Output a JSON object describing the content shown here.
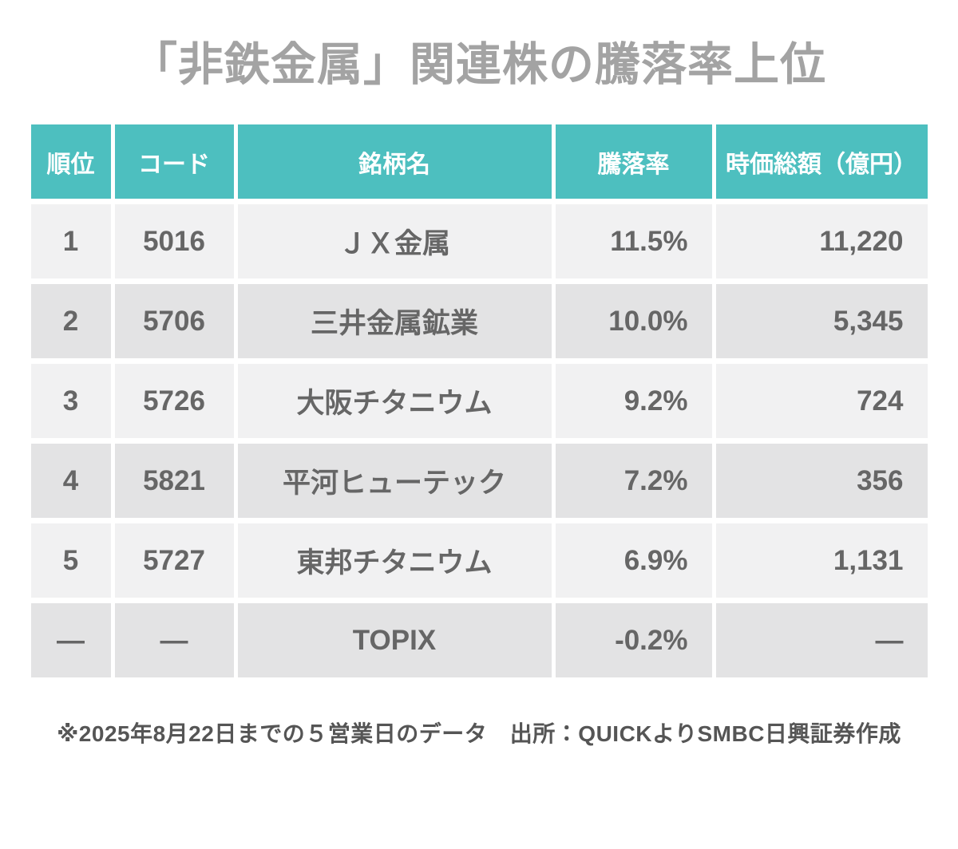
{
  "title": "「非鉄金属」関連株の騰落率上位",
  "footnote": "※2025年8月22日までの５営業日のデータ　出所：QUICKよりSMBC日興証券作成",
  "colors": {
    "header_bg": "#4dbfbf",
    "header_text": "#ffffff",
    "row_light": "#f1f1f2",
    "row_dark": "#e3e3e4",
    "title_text": "#a3a3a3",
    "body_text": "#666666",
    "footnote_text": "#555555",
    "page_bg": "#ffffff"
  },
  "chart_data": {
    "type": "table",
    "title": "「非鉄金属」関連株の騰落率上位",
    "columns": [
      {
        "key": "rank",
        "label": "順位",
        "align": "center"
      },
      {
        "key": "code",
        "label": "コード",
        "align": "center"
      },
      {
        "key": "name",
        "label": "銘柄名",
        "align": "center"
      },
      {
        "key": "change",
        "label": "騰落率",
        "align": "right"
      },
      {
        "key": "mcap",
        "label": "時価総額（億円）",
        "align": "right"
      }
    ],
    "rows": [
      {
        "rank": "1",
        "code": "5016",
        "name": "ＪＸ金属",
        "change": "11.5%",
        "mcap": "11,220"
      },
      {
        "rank": "2",
        "code": "5706",
        "name": "三井金属鉱業",
        "change": "10.0%",
        "mcap": "5,345"
      },
      {
        "rank": "3",
        "code": "5726",
        "name": "大阪チタニウム",
        "change": "9.2%",
        "mcap": "724"
      },
      {
        "rank": "4",
        "code": "5821",
        "name": "平河ヒューテック",
        "change": "7.2%",
        "mcap": "356"
      },
      {
        "rank": "5",
        "code": "5727",
        "name": "東邦チタニウム",
        "change": "6.9%",
        "mcap": "1,131"
      },
      {
        "rank": "—",
        "code": "—",
        "name": "TOPIX",
        "change": "-0.2%",
        "mcap": "—"
      }
    ],
    "footnote": "※2025年8月22日までの５営業日のデータ　出所：QUICKよりSMBC日興証券作成",
    "layout_hints": {
      "header_align": "center",
      "value_columns_right_aligned": [
        "change",
        "mcap"
      ],
      "zebra_striping": true
    }
  }
}
